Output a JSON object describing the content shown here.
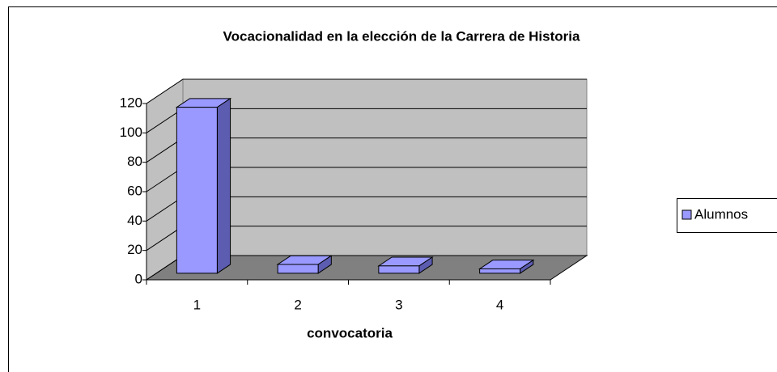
{
  "chart_data": {
    "type": "bar",
    "title": "Vocacionalidad en la elección de la Carrera de Historia",
    "x_label": "convocatoria",
    "categories": [
      "1",
      "2",
      "3",
      "4"
    ],
    "series": [
      {
        "name": "Alumnos",
        "color": "#9999ff",
        "values": [
          113,
          6,
          5,
          3
        ]
      }
    ],
    "ylim": [
      0,
      120
    ],
    "yticks": [
      0,
      20,
      40,
      60,
      80,
      100,
      120
    ],
    "grid": true,
    "legend": "right"
  }
}
